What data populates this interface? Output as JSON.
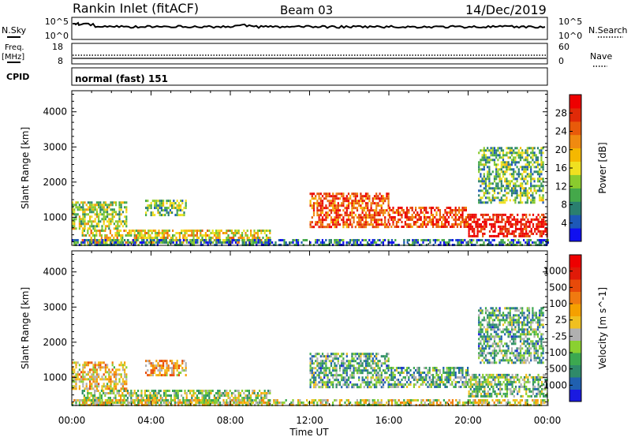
{
  "header": {
    "station": "Rankin Inlet (fitACF)",
    "beam": "Beam 03",
    "date": "14/Dec/2019"
  },
  "params": {
    "nsky_label": "N.Sky",
    "nsearch_label": "N.Search",
    "freq_label_1": "Freq.",
    "freq_label_2": "[MHz]",
    "nave_label": "Nave",
    "cpid_label": "CPID",
    "cpid_text": "normal (fast) 151",
    "nsky_ticks": [
      "10^5",
      "10^0"
    ],
    "nsearch_ticks": [
      "10^5",
      "10^0"
    ],
    "freq_ticks": [
      "18",
      "8"
    ],
    "nave_ticks": [
      "60",
      "0"
    ]
  },
  "chart_data": [
    {
      "type": "heatmap",
      "title": "",
      "xlabel": "Time UT",
      "ylabel": "Slant Range [km]",
      "xlim": [
        0,
        24
      ],
      "x_ticks": [
        "00:00",
        "04:00",
        "08:00",
        "12:00",
        "16:00",
        "20:00",
        "00:00"
      ],
      "ylim": [
        200,
        4600
      ],
      "y_ticks": [
        1000,
        2000,
        3000,
        4000
      ],
      "colorbar": {
        "label": "Power [dB]",
        "range": [
          0,
          32
        ],
        "ticks": [
          "4",
          "8",
          "12",
          "16",
          "20",
          "24",
          "28"
        ],
        "colors": [
          "#1010f0",
          "#1d58b8",
          "#2a7f6f",
          "#44a84a",
          "#8acb2e",
          "#f0e020",
          "#f5b800",
          "#f08a10",
          "#e85a0a",
          "#e02a08",
          "#ee0000"
        ]
      },
      "regions": [
        {
          "x": [
            0,
            2.8
          ],
          "y": [
            700,
            1450
          ],
          "level": 0.45
        },
        {
          "x": [
            3.7,
            5.8
          ],
          "y": [
            1050,
            1500
          ],
          "level": 0.35
        },
        {
          "x": [
            0.5,
            10
          ],
          "y": [
            280,
            650
          ],
          "level": 0.55
        },
        {
          "x": [
            0,
            24
          ],
          "y": [
            220,
            380
          ],
          "level": 0.2
        },
        {
          "x": [
            12,
            16
          ],
          "y": [
            750,
            1700
          ],
          "level": 0.8
        },
        {
          "x": [
            16,
            20
          ],
          "y": [
            700,
            1300
          ],
          "level": 0.85
        },
        {
          "x": [
            20,
            24
          ],
          "y": [
            450,
            1100
          ],
          "level": 0.95
        },
        {
          "x": [
            20.5,
            23.8
          ],
          "y": [
            1400,
            3000
          ],
          "level": 0.35
        }
      ]
    },
    {
      "type": "heatmap",
      "title": "",
      "xlabel": "Time UT",
      "ylabel": "Slant Range [km]",
      "xlim": [
        0,
        24
      ],
      "x_ticks": [
        "00:00",
        "04:00",
        "08:00",
        "12:00",
        "16:00",
        "20:00",
        "00:00"
      ],
      "ylim": [
        200,
        4600
      ],
      "y_ticks": [
        1000,
        2000,
        3000,
        4000
      ],
      "colorbar": {
        "label": "Velocity [m s^-1]",
        "range": [
          -1250,
          1250
        ],
        "ticks": [
          "1000",
          "500",
          "100",
          "25",
          "-25",
          "-100",
          "-500",
          "-1000"
        ],
        "colors": [
          "#1a1ae0",
          "#2060b0",
          "#2f8a6a",
          "#3ca850",
          "#8ad030",
          "#b0b0b0",
          "#f0c020",
          "#f5a000",
          "#f07a10",
          "#e84a0a",
          "#e01a08",
          "#ee0000"
        ]
      },
      "regions": [
        {
          "x": [
            0,
            2.8
          ],
          "y": [
            700,
            1450
          ],
          "level": 0.55
        },
        {
          "x": [
            3.7,
            5.8
          ],
          "y": [
            1050,
            1500
          ],
          "level": 0.6
        },
        {
          "x": [
            0.5,
            10
          ],
          "y": [
            280,
            650
          ],
          "level": 0.4
        },
        {
          "x": [
            0,
            24
          ],
          "y": [
            220,
            380
          ],
          "level": 0.5
        },
        {
          "x": [
            12,
            16
          ],
          "y": [
            750,
            1700
          ],
          "level": 0.3
        },
        {
          "x": [
            16,
            20
          ],
          "y": [
            700,
            1300
          ],
          "level": 0.3
        },
        {
          "x": [
            20,
            24
          ],
          "y": [
            450,
            1100
          ],
          "level": 0.35
        },
        {
          "x": [
            20.5,
            23.8
          ],
          "y": [
            1400,
            3000
          ],
          "level": 0.3
        }
      ]
    }
  ]
}
